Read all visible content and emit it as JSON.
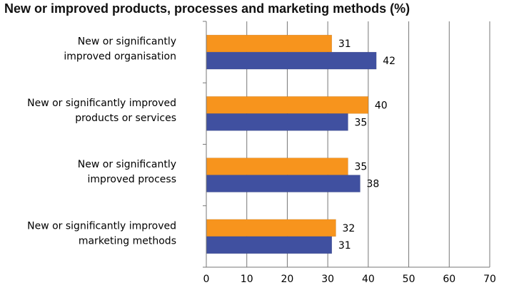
{
  "chart_data": {
    "type": "bar",
    "orientation": "horizontal",
    "title": "New or improved products, processes and marketing methods (%)",
    "categories": [
      [
        "New or significantly",
        "improved organisation"
      ],
      [
        "New or significantly improved",
        "products or services"
      ],
      [
        "New or significantly",
        "improved process"
      ],
      [
        "New or significantly improved",
        "marketing methods"
      ]
    ],
    "series": [
      {
        "color": "#F7941D",
        "values": [
          31,
          40,
          35,
          32
        ]
      },
      {
        "color": "#4050A0",
        "values": [
          42,
          35,
          38,
          31
        ]
      }
    ],
    "xlim": [
      0,
      70
    ],
    "xticks": [
      "0",
      "10",
      "20",
      "30",
      "40",
      "50",
      "60",
      "70"
    ],
    "grid": "vertical",
    "legend": "none"
  }
}
